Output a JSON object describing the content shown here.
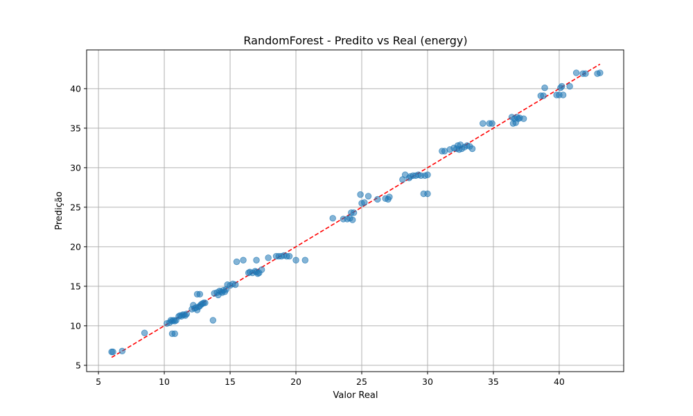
{
  "chart_data": {
    "type": "scatter",
    "title": "RandomForest - Predito vs Real (energy)",
    "xlabel": "Valor Real",
    "ylabel": "Predição",
    "xlim": [
      4.1,
      44.9
    ],
    "ylim": [
      4.2,
      44.9
    ],
    "xticks": [
      5,
      10,
      15,
      20,
      25,
      30,
      35,
      40
    ],
    "yticks": [
      5,
      10,
      15,
      20,
      25,
      30,
      35,
      40
    ],
    "xtick_labels": [
      "5",
      "10",
      "15",
      "20",
      "25",
      "30",
      "35",
      "40"
    ],
    "ytick_labels": [
      "5",
      "10",
      "15",
      "20",
      "25",
      "30",
      "35",
      "40"
    ],
    "grid": true,
    "point_color": "#1f77b4",
    "point_alpha": 0.55,
    "reference_line": {
      "from": [
        6.0,
        6.0
      ],
      "to": [
        43.1,
        43.1
      ],
      "color": "#ff0000",
      "style": "dashed"
    },
    "points": [
      [
        6.0,
        6.7
      ],
      [
        6.1,
        6.7
      ],
      [
        6.8,
        6.8
      ],
      [
        8.5,
        9.1
      ],
      [
        10.2,
        10.3
      ],
      [
        10.4,
        10.4
      ],
      [
        10.5,
        10.7
      ],
      [
        10.6,
        10.6
      ],
      [
        10.7,
        10.7
      ],
      [
        10.8,
        10.6
      ],
      [
        10.9,
        10.7
      ],
      [
        10.6,
        9.0
      ],
      [
        10.8,
        9.0
      ],
      [
        11.1,
        11.2
      ],
      [
        11.2,
        11.3
      ],
      [
        11.3,
        11.2
      ],
      [
        11.4,
        11.4
      ],
      [
        11.5,
        11.4
      ],
      [
        11.6,
        11.3
      ],
      [
        11.7,
        11.5
      ],
      [
        12.1,
        12.1
      ],
      [
        12.2,
        12.6
      ],
      [
        12.3,
        12.2
      ],
      [
        12.4,
        12.3
      ],
      [
        12.5,
        12.0
      ],
      [
        12.6,
        12.4
      ],
      [
        12.7,
        12.5
      ],
      [
        12.8,
        12.7
      ],
      [
        12.9,
        12.8
      ],
      [
        13.0,
        12.9
      ],
      [
        13.1,
        12.9
      ],
      [
        12.5,
        14.0
      ],
      [
        12.7,
        14.0
      ],
      [
        13.7,
        10.7
      ],
      [
        13.8,
        14.1
      ],
      [
        14.0,
        14.2
      ],
      [
        14.1,
        13.9
      ],
      [
        14.2,
        14.4
      ],
      [
        14.3,
        14.3
      ],
      [
        14.4,
        14.2
      ],
      [
        14.5,
        14.5
      ],
      [
        14.6,
        14.3
      ],
      [
        14.7,
        14.6
      ],
      [
        14.8,
        15.2
      ],
      [
        15.0,
        15.1
      ],
      [
        15.2,
        15.3
      ],
      [
        15.4,
        15.2
      ],
      [
        15.5,
        18.1
      ],
      [
        16.0,
        18.3
      ],
      [
        16.4,
        16.7
      ],
      [
        16.5,
        16.8
      ],
      [
        16.7,
        16.7
      ],
      [
        16.9,
        16.9
      ],
      [
        17.0,
        16.8
      ],
      [
        17.1,
        16.6
      ],
      [
        17.2,
        16.7
      ],
      [
        17.4,
        17.1
      ],
      [
        17.0,
        18.3
      ],
      [
        17.9,
        18.6
      ],
      [
        18.5,
        18.8
      ],
      [
        18.7,
        18.8
      ],
      [
        18.9,
        18.8
      ],
      [
        19.1,
        18.9
      ],
      [
        19.3,
        18.8
      ],
      [
        19.5,
        18.8
      ],
      [
        20.0,
        18.3
      ],
      [
        20.7,
        18.3
      ],
      [
        22.8,
        23.6
      ],
      [
        23.6,
        23.5
      ],
      [
        23.9,
        23.5
      ],
      [
        24.1,
        23.6
      ],
      [
        24.2,
        24.3
      ],
      [
        24.3,
        23.4
      ],
      [
        24.4,
        24.3
      ],
      [
        24.9,
        26.6
      ],
      [
        25.0,
        25.5
      ],
      [
        25.2,
        25.6
      ],
      [
        25.5,
        26.4
      ],
      [
        26.2,
        26.0
      ],
      [
        26.8,
        26.1
      ],
      [
        27.0,
        26.0
      ],
      [
        27.1,
        26.3
      ],
      [
        28.1,
        28.5
      ],
      [
        28.3,
        29.1
      ],
      [
        28.6,
        28.7
      ],
      [
        28.7,
        28.9
      ],
      [
        28.9,
        29.0
      ],
      [
        29.1,
        29.0
      ],
      [
        29.3,
        29.1
      ],
      [
        29.5,
        29.0
      ],
      [
        29.8,
        29.0
      ],
      [
        30.0,
        29.1
      ],
      [
        29.7,
        26.7
      ],
      [
        30.0,
        26.7
      ],
      [
        31.1,
        32.1
      ],
      [
        31.3,
        32.1
      ],
      [
        31.7,
        32.3
      ],
      [
        32.0,
        32.5
      ],
      [
        32.2,
        32.4
      ],
      [
        32.3,
        32.8
      ],
      [
        32.4,
        32.3
      ],
      [
        32.5,
        32.9
      ],
      [
        32.6,
        32.4
      ],
      [
        32.8,
        32.6
      ],
      [
        33.0,
        32.8
      ],
      [
        33.2,
        32.7
      ],
      [
        33.4,
        32.4
      ],
      [
        34.2,
        35.6
      ],
      [
        34.7,
        35.6
      ],
      [
        34.9,
        35.6
      ],
      [
        36.4,
        36.4
      ],
      [
        36.5,
        35.6
      ],
      [
        36.6,
        36.2
      ],
      [
        36.7,
        35.7
      ],
      [
        36.8,
        36.4
      ],
      [
        36.9,
        36.2
      ],
      [
        37.0,
        36.3
      ],
      [
        37.3,
        36.2
      ],
      [
        38.6,
        39.1
      ],
      [
        38.8,
        39.1
      ],
      [
        38.9,
        40.1
      ],
      [
        39.8,
        39.2
      ],
      [
        40.0,
        39.2
      ],
      [
        40.1,
        40.1
      ],
      [
        40.2,
        40.3
      ],
      [
        40.3,
        39.2
      ],
      [
        40.8,
        40.3
      ],
      [
        41.3,
        42.0
      ],
      [
        41.8,
        41.9
      ],
      [
        42.0,
        41.9
      ],
      [
        42.9,
        41.9
      ],
      [
        43.1,
        42.0
      ]
    ]
  }
}
